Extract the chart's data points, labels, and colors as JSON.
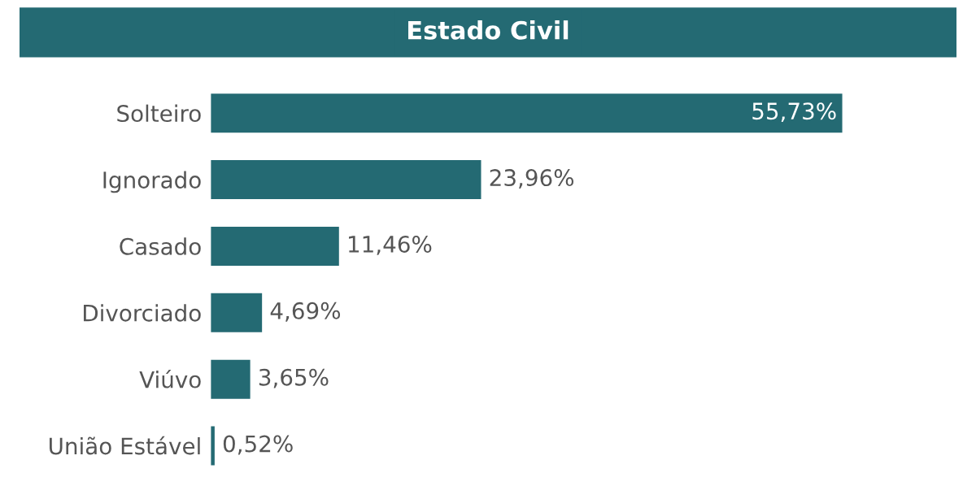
{
  "chart_data": {
    "type": "bar",
    "orientation": "horizontal",
    "title": "Estado Civil",
    "categories": [
      "Solteiro",
      "Ignorado",
      "Casado",
      "Divorciado",
      "Viúvo",
      "União Estável"
    ],
    "values": [
      55.73,
      23.96,
      11.46,
      4.69,
      3.65,
      0.52
    ],
    "value_labels": [
      "55,73%",
      "23,96%",
      "11,46%",
      "4,69%",
      "3,65%",
      "0,52%"
    ],
    "color": "#246a73",
    "grid": false,
    "legend": false
  }
}
